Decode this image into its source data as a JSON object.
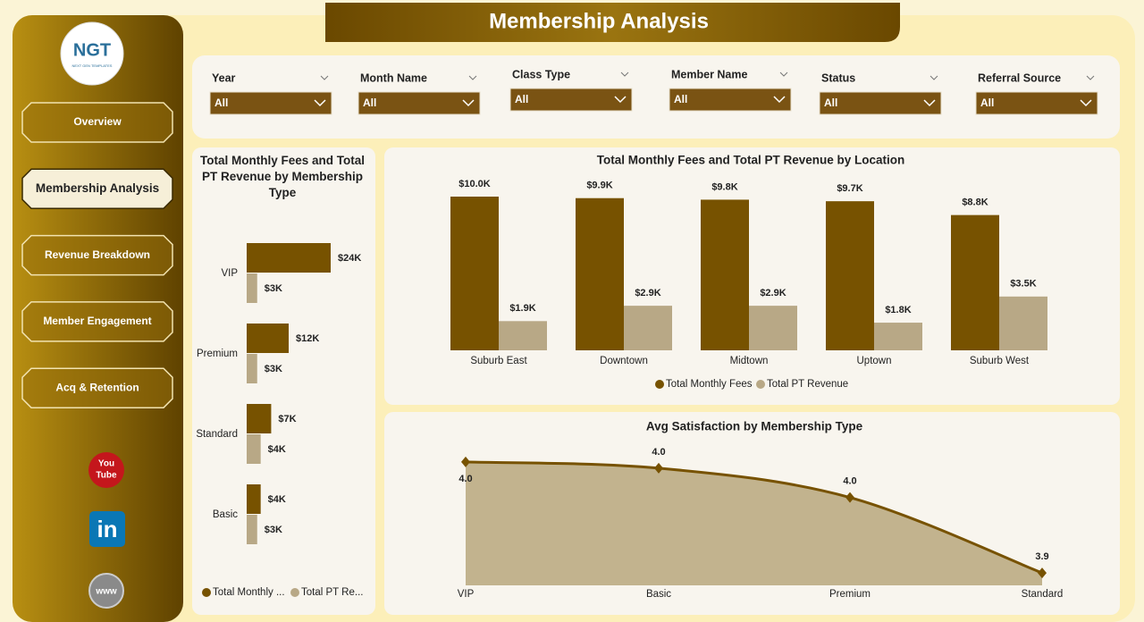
{
  "header": {
    "title": "Membership Analysis"
  },
  "logo": {
    "text": "NGT",
    "subtext": "NEXT GEN TEMPLATES"
  },
  "nav": [
    "Overview",
    "Membership Analysis",
    "Revenue Breakdown",
    "Member Engagement",
    "Acq & Retention"
  ],
  "social": [
    "You",
    "Tube",
    "in",
    "www"
  ],
  "filters": [
    {
      "label": "Year",
      "value": "All"
    },
    {
      "label": "Month Name",
      "value": "All"
    },
    {
      "label": "Class Type",
      "value": "All"
    },
    {
      "label": "Member Name",
      "value": "All"
    },
    {
      "label": "Status",
      "value": "All"
    },
    {
      "label": "Referral Source",
      "value": "All"
    }
  ],
  "chart_data": [
    {
      "type": "hbar",
      "title": "Total Monthly Fees and Total PT Revenue by Membership Type",
      "categories": [
        "VIP",
        "Premium",
        "Standard",
        "Basic"
      ],
      "series": [
        {
          "name": "Total Monthly ...",
          "color": "#775200",
          "values": [
            24000,
            12000,
            7000,
            4000
          ],
          "value_labels": [
            "$24K",
            "$12K",
            "$7K",
            "$4K"
          ]
        },
        {
          "name": "Total PT Re...",
          "color": "#b8a886",
          "values": [
            3000,
            3000,
            4000,
            3000
          ],
          "value_labels": [
            "$3K",
            "$3K",
            "$4K",
            "$3K"
          ]
        }
      ],
      "legend": "bottom-left"
    },
    {
      "type": "bar",
      "title": "Total Monthly Fees and Total PT Revenue by Location",
      "categories": [
        "Suburb East",
        "Downtown",
        "Midtown",
        "Uptown",
        "Suburb West"
      ],
      "series": [
        {
          "name": "Total Monthly Fees",
          "color": "#775200",
          "values": [
            10000,
            9900,
            9800,
            9700,
            8800
          ],
          "value_labels": [
            "$10.0K",
            "$9.9K",
            "$9.8K",
            "$9.7K",
            "$8.8K"
          ]
        },
        {
          "name": "Total PT Revenue",
          "color": "#b8a886",
          "values": [
            1900,
            2900,
            2900,
            1800,
            3500
          ],
          "value_labels": [
            "$1.9K",
            "$2.9K",
            "$2.9K",
            "$1.8K",
            "$3.5K"
          ]
        }
      ],
      "legend": "bottom"
    },
    {
      "type": "area",
      "title": "Avg Satisfaction by Membership Type",
      "categories": [
        "VIP",
        "Basic",
        "Premium",
        "Standard"
      ],
      "values": [
        3.995,
        3.988,
        3.955,
        3.87
      ],
      "value_labels": [
        "4.0",
        "4.0",
        "4.0",
        "3.9"
      ],
      "ylim": [
        3.856,
        4.012
      ],
      "color": "#775200",
      "fill": "#c2b38e"
    }
  ]
}
